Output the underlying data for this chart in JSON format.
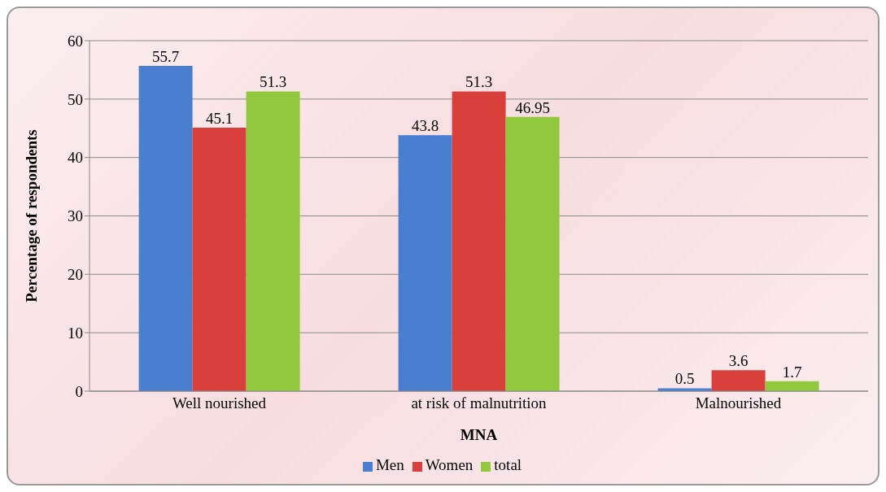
{
  "chart_data": {
    "type": "bar",
    "xlabel": "MNA",
    "ylabel": "Percentage of respondents",
    "categories": [
      "Well nourished",
      "at risk of malnutrition",
      "Malnourished"
    ],
    "series": [
      {
        "name": "Men",
        "color": "#4a7fd0",
        "values": [
          55.7,
          43.8,
          0.5
        ]
      },
      {
        "name": "Women",
        "color": "#d9403c",
        "values": [
          45.1,
          51.3,
          3.6
        ]
      },
      {
        "name": "total",
        "color": "#92c83e",
        "values": [
          51.3,
          46.95,
          1.7
        ]
      }
    ],
    "ylim": [
      0,
      60
    ],
    "yticks": [
      0,
      10,
      20,
      30,
      40,
      50,
      60
    ],
    "grid": "y",
    "legend": "bottom",
    "data_labels": true
  }
}
